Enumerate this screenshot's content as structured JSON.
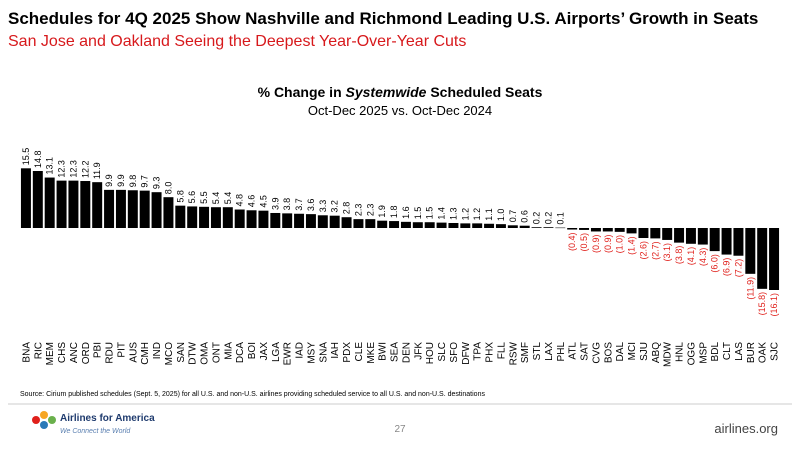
{
  "header": {
    "title": "Schedules for 4Q 2025 Show Nashville and Richmond Leading U.S. Airports’ Growth in Seats",
    "subtitle": "San Jose and Oakland Seeing the Deepest Year-Over-Year Cuts"
  },
  "chart_data": {
    "type": "bar",
    "title_parts": [
      "% Change in ",
      "Systemwide",
      " Scheduled Seats"
    ],
    "subtitle": "Oct-Dec 2025 vs. Oct-Dec 2024",
    "categories": [
      "BNA",
      "RIC",
      "MEM",
      "CHS",
      "ANC",
      "ORD",
      "PBI",
      "RDU",
      "PIT",
      "AUS",
      "CMH",
      "IND",
      "MCO",
      "SAN",
      "DTW",
      "OMA",
      "ONT",
      "MIA",
      "DCA",
      "BOI",
      "JAX",
      "LGA",
      "EWR",
      "IAD",
      "MSY",
      "SNA",
      "IAH",
      "PDX",
      "CLE",
      "MKE",
      "BWI",
      "SEA",
      "DEN",
      "JFK",
      "HOU",
      "SLC",
      "SFO",
      "DFW",
      "TPA",
      "PHX",
      "FLL",
      "RSW",
      "SMF",
      "STL",
      "LAX",
      "PHL",
      "ATL",
      "SAT",
      "CVG",
      "BOS",
      "DAL",
      "MCI",
      "SJU",
      "ABQ",
      "MDW",
      "HNL",
      "OGG",
      "MSP",
      "BDL",
      "CLT",
      "LAS",
      "BUR",
      "OAK",
      "SJC"
    ],
    "values": [
      15.5,
      14.8,
      13.1,
      12.3,
      12.3,
      12.2,
      11.9,
      9.9,
      9.9,
      9.8,
      9.7,
      9.3,
      8.0,
      5.8,
      5.6,
      5.5,
      5.4,
      5.4,
      4.8,
      4.6,
      4.5,
      3.9,
      3.8,
      3.7,
      3.6,
      3.3,
      3.2,
      2.8,
      2.3,
      2.3,
      1.9,
      1.8,
      1.6,
      1.5,
      1.5,
      1.4,
      1.3,
      1.2,
      1.2,
      1.1,
      1.0,
      0.7,
      0.6,
      0.2,
      0.2,
      0.1,
      -0.4,
      -0.5,
      -0.9,
      -0.9,
      -1.0,
      -1.4,
      -2.6,
      -2.7,
      -3.1,
      -3.8,
      -4.1,
      -4.3,
      -6.0,
      -6.9,
      -7.2,
      -11.9,
      -15.8,
      -16.1
    ],
    "value_labels": [
      "15.5",
      "14.8",
      "13.1",
      "12.3",
      "12.3",
      "12.2",
      "11.9",
      "9.9",
      "9.9",
      "9.8",
      "9.7",
      "9.3",
      "8.0",
      "5.8",
      "5.6",
      "5.5",
      "5.4",
      "5.4",
      "4.8",
      "4.6",
      "4.5",
      "3.9",
      "3.8",
      "3.7",
      "3.6",
      "3.3",
      "3.2",
      "2.8",
      "2.3",
      "2.3",
      "1.9",
      "1.8",
      "1.6",
      "1.5",
      "1.5",
      "1.4",
      "1.3",
      "1.2",
      "1.2",
      "1.1",
      "1.0",
      "0.7",
      "0.6",
      "0.2",
      "0.2",
      "0.1",
      "(0.4)",
      "(0.5)",
      "(0.9)",
      "(0.9)",
      "(1.0)",
      "(1.4)",
      "(2.6)",
      "(2.7)",
      "(3.1)",
      "(3.8)",
      "(4.1)",
      "(4.3)",
      "(6.0)",
      "(6.9)",
      "(7.2)",
      "(11.9)",
      "(15.8)",
      "(16.1)"
    ],
    "color": "#000000",
    "negative_label_color": "#e0201b"
  },
  "footer": {
    "source": "Source: Cirium published schedules (Sept. 5, 2025) for all U.S. and non-U.S. airlines providing scheduled service to all U.S. and non-U.S. destinations",
    "logo_name": "Airlines for America",
    "logo_tagline": "We Connect the World",
    "page": "27",
    "site": "airlines.org"
  }
}
